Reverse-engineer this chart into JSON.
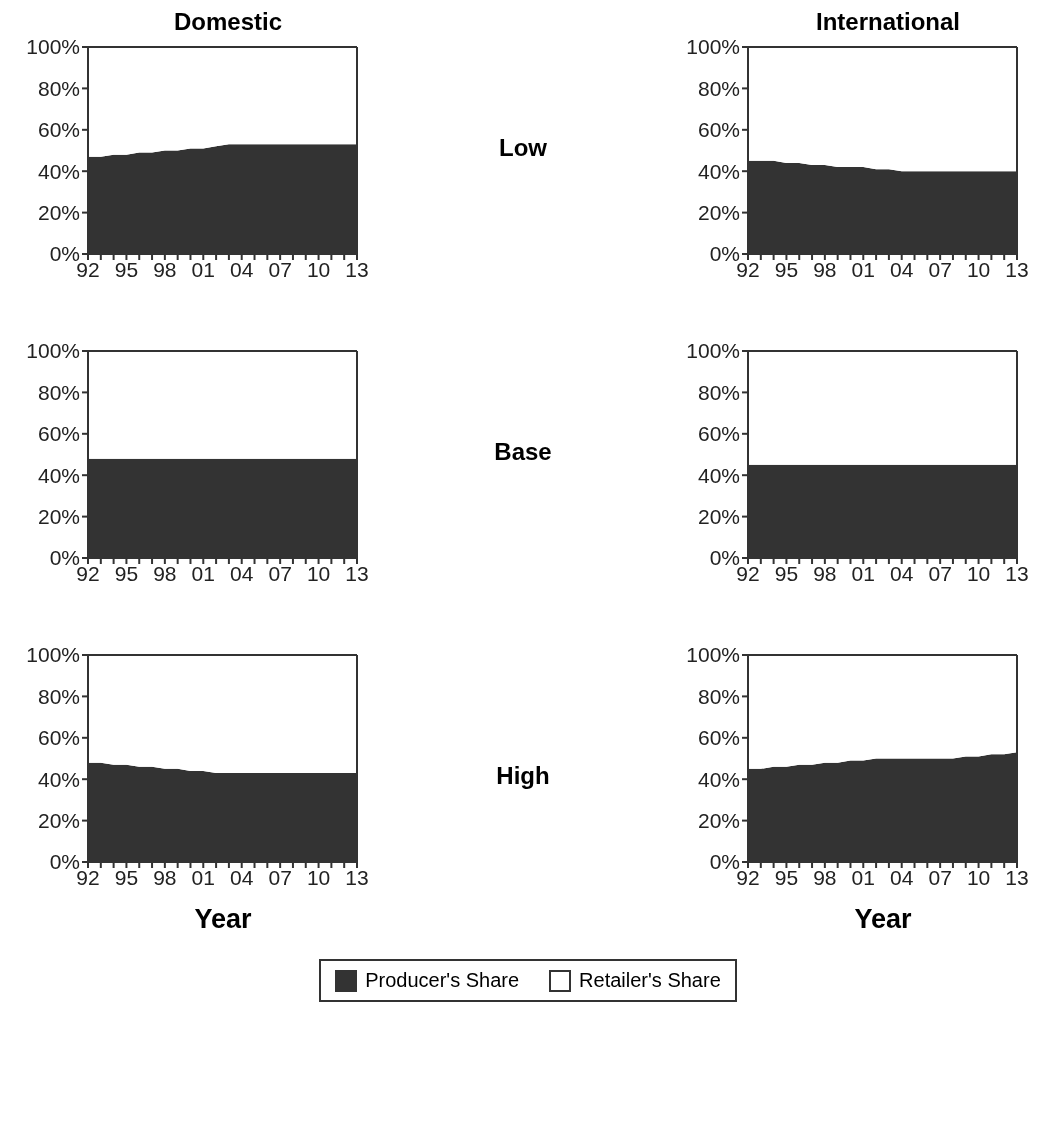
{
  "chart_data": [
    {
      "type": "area",
      "title": "Domestic",
      "annotations": [
        "Low"
      ],
      "legend": "bottom",
      "stacked": true,
      "categories": [
        "92",
        null,
        null,
        "95",
        null,
        null,
        "98",
        null,
        null,
        "01",
        null,
        null,
        "04",
        null,
        null,
        "07",
        null,
        null,
        "10",
        null,
        null,
        "13"
      ],
      "ylim": [
        0,
        100
      ],
      "yticks": [
        {
          "value": 0,
          "label": "0%"
        },
        {
          "value": 20,
          "label": "20%"
        },
        {
          "value": 40,
          "label": "40%"
        },
        {
          "value": 60,
          "label": "60%"
        },
        {
          "value": 80,
          "label": "80%"
        },
        {
          "value": 100,
          "label": "100%"
        }
      ],
      "series": [
        {
          "name": "Producer's Share",
          "color": "#333333",
          "values": [
            47,
            47,
            48,
            48,
            49,
            49,
            50,
            50,
            51,
            51,
            52,
            53,
            53,
            53,
            53,
            53,
            53,
            53,
            53,
            53,
            53,
            53
          ]
        },
        {
          "name": "Retailer's Share",
          "color": "#ffffff",
          "values": [
            53,
            53,
            52,
            52,
            51,
            51,
            50,
            50,
            49,
            49,
            48,
            47,
            47,
            47,
            47,
            47,
            47,
            47,
            47,
            47,
            47,
            47
          ]
        }
      ]
    },
    {
      "type": "area",
      "title": "International",
      "stacked": true,
      "categories": [
        "92",
        null,
        null,
        "95",
        null,
        null,
        "98",
        null,
        null,
        "01",
        null,
        null,
        "04",
        null,
        null,
        "07",
        null,
        null,
        "10",
        null,
        null,
        "13"
      ],
      "ylim": [
        0,
        100
      ],
      "yticks": [
        {
          "value": 0,
          "label": "0%"
        },
        {
          "value": 20,
          "label": "20%"
        },
        {
          "value": 40,
          "label": "40%"
        },
        {
          "value": 60,
          "label": "60%"
        },
        {
          "value": 80,
          "label": "80%"
        },
        {
          "value": 100,
          "label": "100%"
        }
      ],
      "series": [
        {
          "color": "#333333",
          "values": [
            45,
            45,
            45,
            44,
            44,
            43,
            43,
            42,
            42,
            42,
            41,
            41,
            40,
            40,
            40,
            40,
            40,
            40,
            40,
            40,
            40,
            40
          ]
        },
        {
          "color": "#ffffff",
          "values": [
            55,
            55,
            55,
            56,
            56,
            57,
            57,
            58,
            58,
            58,
            59,
            59,
            60,
            60,
            60,
            60,
            60,
            60,
            60,
            60,
            60,
            60
          ]
        }
      ]
    },
    {
      "type": "area",
      "annotations": [
        "Base"
      ],
      "stacked": true,
      "categories": [
        "92",
        null,
        null,
        "95",
        null,
        null,
        "98",
        null,
        null,
        "01",
        null,
        null,
        "04",
        null,
        null,
        "07",
        null,
        null,
        "10",
        null,
        null,
        "13"
      ],
      "ylim": [
        0,
        100
      ],
      "yticks": [
        {
          "value": 0,
          "label": "0%"
        },
        {
          "value": 20,
          "label": "20%"
        },
        {
          "value": 40,
          "label": "40%"
        },
        {
          "value": 60,
          "label": "60%"
        },
        {
          "value": 80,
          "label": "80%"
        },
        {
          "value": 100,
          "label": "100%"
        }
      ],
      "series": [
        {
          "color": "#333333",
          "values": [
            48,
            48,
            48,
            48,
            48,
            48,
            48,
            48,
            48,
            48,
            48,
            48,
            48,
            48,
            48,
            48,
            48,
            48,
            48,
            48,
            48,
            48
          ]
        },
        {
          "color": "#ffffff",
          "values": [
            52,
            52,
            52,
            52,
            52,
            52,
            52,
            52,
            52,
            52,
            52,
            52,
            52,
            52,
            52,
            52,
            52,
            52,
            52,
            52,
            52,
            52
          ]
        }
      ]
    },
    {
      "type": "area",
      "stacked": true,
      "categories": [
        "92",
        null,
        null,
        "95",
        null,
        null,
        "98",
        null,
        null,
        "01",
        null,
        null,
        "04",
        null,
        null,
        "07",
        null,
        null,
        "10",
        null,
        null,
        "13"
      ],
      "ylim": [
        0,
        100
      ],
      "yticks": [
        {
          "value": 0,
          "label": "0%"
        },
        {
          "value": 20,
          "label": "20%"
        },
        {
          "value": 40,
          "label": "40%"
        },
        {
          "value": 60,
          "label": "60%"
        },
        {
          "value": 80,
          "label": "80%"
        },
        {
          "value": 100,
          "label": "100%"
        }
      ],
      "series": [
        {
          "color": "#333333",
          "values": [
            45,
            45,
            45,
            45,
            45,
            45,
            45,
            45,
            45,
            45,
            45,
            45,
            45,
            45,
            45,
            45,
            45,
            45,
            45,
            45,
            45,
            45
          ]
        },
        {
          "color": "#ffffff",
          "values": [
            55,
            55,
            55,
            55,
            55,
            55,
            55,
            55,
            55,
            55,
            55,
            55,
            55,
            55,
            55,
            55,
            55,
            55,
            55,
            55,
            55,
            55
          ]
        }
      ]
    },
    {
      "type": "area",
      "xlabel": "Year",
      "annotations": [
        "High"
      ],
      "stacked": true,
      "categories": [
        "92",
        null,
        null,
        "95",
        null,
        null,
        "98",
        null,
        null,
        "01",
        null,
        null,
        "04",
        null,
        null,
        "07",
        null,
        null,
        "10",
        null,
        null,
        "13"
      ],
      "ylim": [
        0,
        100
      ],
      "yticks": [
        {
          "value": 0,
          "label": "0%"
        },
        {
          "value": 20,
          "label": "20%"
        },
        {
          "value": 40,
          "label": "40%"
        },
        {
          "value": 60,
          "label": "60%"
        },
        {
          "value": 80,
          "label": "80%"
        },
        {
          "value": 100,
          "label": "100%"
        }
      ],
      "series": [
        {
          "color": "#333333",
          "values": [
            48,
            48,
            47,
            47,
            46,
            46,
            45,
            45,
            44,
            44,
            43,
            43,
            43,
            43,
            43,
            43,
            43,
            43,
            43,
            43,
            43,
            43
          ]
        },
        {
          "color": "#ffffff",
          "values": [
            52,
            52,
            53,
            53,
            54,
            54,
            55,
            55,
            56,
            56,
            57,
            57,
            57,
            57,
            57,
            57,
            57,
            57,
            57,
            57,
            57,
            57
          ]
        }
      ]
    },
    {
      "type": "area",
      "xlabel": "Year",
      "stacked": true,
      "categories": [
        "92",
        null,
        null,
        "95",
        null,
        null,
        "98",
        null,
        null,
        "01",
        null,
        null,
        "04",
        null,
        null,
        "07",
        null,
        null,
        "10",
        null,
        null,
        "13"
      ],
      "ylim": [
        0,
        100
      ],
      "yticks": [
        {
          "value": 0,
          "label": "0%"
        },
        {
          "value": 20,
          "label": "20%"
        },
        {
          "value": 40,
          "label": "40%"
        },
        {
          "value": 60,
          "label": "60%"
        },
        {
          "value": 80,
          "label": "80%"
        },
        {
          "value": 100,
          "label": "100%"
        }
      ],
      "series": [
        {
          "color": "#333333",
          "values": [
            45,
            45,
            46,
            46,
            47,
            47,
            48,
            48,
            49,
            49,
            50,
            50,
            50,
            50,
            50,
            50,
            50,
            51,
            51,
            52,
            52,
            53
          ]
        },
        {
          "color": "#ffffff",
          "values": [
            55,
            55,
            54,
            54,
            53,
            53,
            52,
            52,
            51,
            51,
            50,
            50,
            50,
            50,
            50,
            50,
            50,
            49,
            49,
            48,
            48,
            47
          ]
        }
      ]
    }
  ]
}
